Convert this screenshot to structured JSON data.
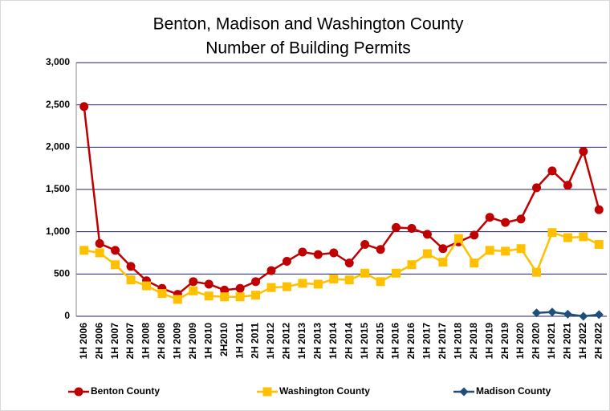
{
  "chart_data": {
    "type": "line",
    "title": [
      "Benton, Madison and Washington County",
      "Number of Building Permits"
    ],
    "categories": [
      "1H 2006",
      "2H 2006",
      "1H 2007",
      "2H 2007",
      "1H 2008",
      "2H 2008",
      "1H 2009",
      "2H 2009",
      "1H 2010",
      "2H2010",
      "1H 2011",
      "2H 2011",
      "1H 2012",
      "2H 2012",
      "1H 2013",
      "2H 2013",
      "1H 2014",
      "2H 2014",
      "1H 2015",
      "2H 2015",
      "1H 2016",
      "2H 2016",
      "1H 2017",
      "2H 2017",
      "1H 2018",
      "2H 2018",
      "1H 2019",
      "2H 2019",
      "1H 2020",
      "2H 2020",
      "1H 2021",
      "2H 2021",
      "1H 2022",
      "2H 2022"
    ],
    "series": [
      {
        "name": "Benton County",
        "color": "#c00000",
        "marker": "circle",
        "values": [
          2480,
          860,
          780,
          590,
          420,
          330,
          260,
          410,
          380,
          310,
          330,
          410,
          540,
          650,
          760,
          730,
          750,
          630,
          850,
          790,
          1050,
          1040,
          970,
          800,
          880,
          960,
          1170,
          1110,
          1150,
          1520,
          1720,
          1550,
          1950,
          1260
        ]
      },
      {
        "name": "Washington County",
        "color": "#ffc000",
        "marker": "square",
        "values": [
          780,
          750,
          610,
          430,
          360,
          270,
          200,
          300,
          240,
          230,
          230,
          250,
          340,
          350,
          390,
          380,
          440,
          430,
          510,
          410,
          510,
          610,
          740,
          640,
          920,
          630,
          780,
          770,
          800,
          520,
          990,
          930,
          940,
          850
        ]
      },
      {
        "name": "Madison County",
        "color": "#1f4e79",
        "marker": "diamond",
        "values": [
          null,
          null,
          null,
          null,
          null,
          null,
          null,
          null,
          null,
          null,
          null,
          null,
          null,
          null,
          null,
          null,
          null,
          null,
          null,
          null,
          null,
          null,
          null,
          null,
          null,
          null,
          null,
          null,
          null,
          40,
          50,
          25,
          0,
          20
        ]
      }
    ],
    "ylim": [
      0,
      3000
    ],
    "yticks": [
      0,
      500,
      {
        "value": 1000,
        "label": "1,000"
      },
      {
        "value": 1500,
        "label": "1,500"
      },
      {
        "value": 2000,
        "label": "2,000"
      },
      {
        "value": 2500,
        "label": "2,500"
      },
      {
        "value": 3000,
        "label": "3,000"
      }
    ],
    "grid": true,
    "legend": "bottom"
  }
}
